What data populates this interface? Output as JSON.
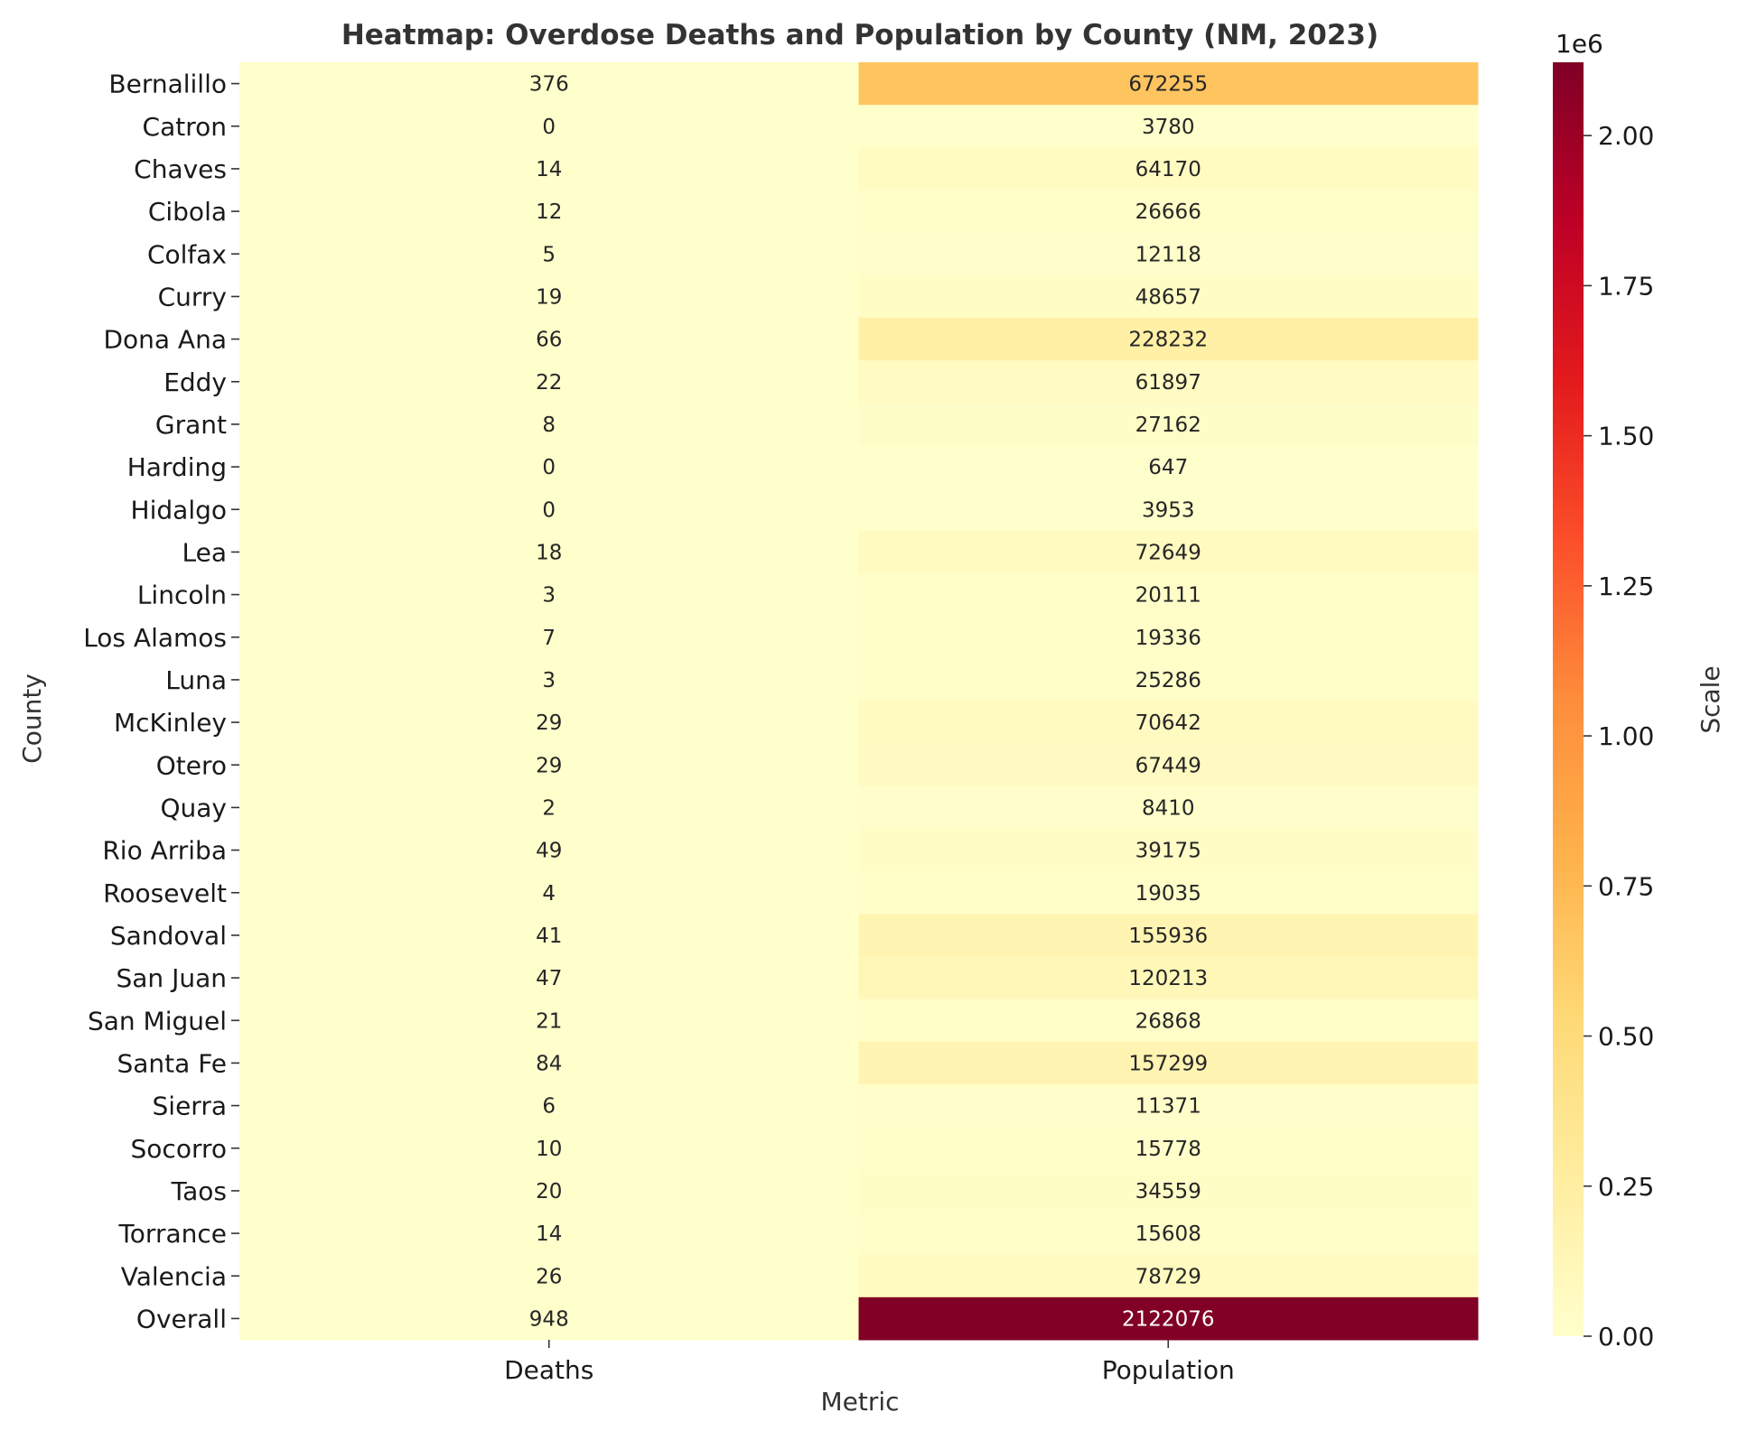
{
  "chart_data": {
    "type": "heatmap",
    "title": "Heatmap: Overdose Deaths and Population by County (NM, 2023)",
    "xlabel": "Metric",
    "ylabel": "County",
    "columns": [
      "Deaths",
      "Population"
    ],
    "rows": [
      "Bernalillo",
      "Catron",
      "Chaves",
      "Cibola",
      "Colfax",
      "Curry",
      "Dona Ana",
      "Eddy",
      "Grant",
      "Harding",
      "Hidalgo",
      "Lea",
      "Lincoln",
      "Los Alamos",
      "Luna",
      "McKinley",
      "Otero",
      "Quay",
      "Rio Arriba",
      "Roosevelt",
      "Sandoval",
      "San Juan",
      "San Miguel",
      "Santa Fe",
      "Sierra",
      "Socorro",
      "Taos",
      "Torrance",
      "Valencia",
      "Overall"
    ],
    "values": [
      [
        376,
        672255
      ],
      [
        0,
        3780
      ],
      [
        14,
        64170
      ],
      [
        12,
        26666
      ],
      [
        5,
        12118
      ],
      [
        19,
        48657
      ],
      [
        66,
        228232
      ],
      [
        22,
        61897
      ],
      [
        8,
        27162
      ],
      [
        0,
        647
      ],
      [
        0,
        3953
      ],
      [
        18,
        72649
      ],
      [
        3,
        20111
      ],
      [
        7,
        19336
      ],
      [
        3,
        25286
      ],
      [
        29,
        70642
      ],
      [
        29,
        67449
      ],
      [
        2,
        8410
      ],
      [
        49,
        39175
      ],
      [
        4,
        19035
      ],
      [
        41,
        155936
      ],
      [
        47,
        120213
      ],
      [
        21,
        26868
      ],
      [
        84,
        157299
      ],
      [
        6,
        11371
      ],
      [
        10,
        15778
      ],
      [
        20,
        34559
      ],
      [
        14,
        15608
      ],
      [
        26,
        78729
      ],
      [
        948,
        2122076
      ]
    ],
    "colormap": "YlOrRd",
    "colorbar": {
      "label": "Scale",
      "offset_text": "1e6",
      "vmin": 0,
      "vmax": 2122076,
      "ticks": [
        0,
        250000,
        500000,
        750000,
        1000000,
        1250000,
        1500000,
        1750000,
        2000000
      ],
      "tick_labels": [
        "0.00",
        "0.25",
        "0.50",
        "0.75",
        "1.00",
        "1.25",
        "1.50",
        "1.75",
        "2.00"
      ]
    },
    "colormap_stops": [
      "#ffffcc",
      "#ffeda0",
      "#fed976",
      "#feb24c",
      "#fd8d3c",
      "#fc4e2a",
      "#e31a1c",
      "#bd0026",
      "#800026"
    ]
  }
}
